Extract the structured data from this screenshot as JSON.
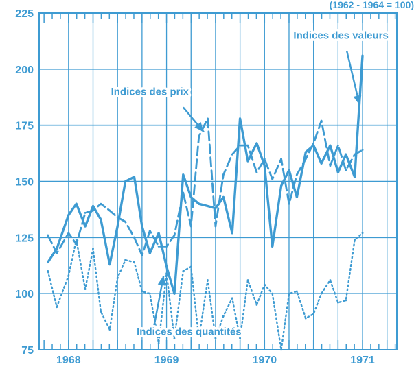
{
  "chart_data": {
    "type": "line",
    "title": "",
    "base_note": "(1962 - 1964 = 100)",
    "xlabel": "",
    "ylabel": "",
    "ylim": [
      75,
      225
    ],
    "yticks": [
      75,
      100,
      125,
      150,
      175,
      200,
      225
    ],
    "xlim": [
      1967.7,
      1971.35
    ],
    "year_labels": [
      {
        "label": "1968",
        "x": 1968.0
      },
      {
        "label": "1969",
        "x": 1969.0
      },
      {
        "label": "1970",
        "x": 1970.0
      },
      {
        "label": "1971",
        "x": 1971.0
      }
    ],
    "grid": true,
    "accent_color": "#3e9bd2",
    "series": [
      {
        "key": "valeurs",
        "label": "Indices des valeurs",
        "style": "solid",
        "x": [
          1967.79,
          1967.88,
          1968.0,
          1968.08,
          1968.17,
          1968.25,
          1968.33,
          1968.42,
          1968.5,
          1968.58,
          1968.67,
          1968.75,
          1968.83,
          1968.92,
          1969.0,
          1969.08,
          1969.17,
          1969.25,
          1969.33,
          1969.42,
          1969.5,
          1969.58,
          1969.67,
          1969.75,
          1969.83,
          1969.92,
          1970.0,
          1970.08,
          1970.17,
          1970.25,
          1970.33,
          1970.42,
          1970.5,
          1970.58,
          1970.67,
          1970.75,
          1970.83,
          1970.92,
          1971.0
        ],
        "y": [
          114,
          120,
          135,
          140,
          130,
          139,
          133,
          113,
          130,
          150,
          152,
          130,
          118,
          127,
          112,
          100,
          153,
          143,
          140,
          139,
          138,
          143,
          127,
          178,
          159,
          167,
          157,
          121,
          148,
          155,
          143,
          163,
          166,
          158,
          166,
          154,
          162,
          152,
          206
        ]
      },
      {
        "key": "prix",
        "label": "Indices des prix",
        "style": "dashed",
        "x": [
          1967.79,
          1967.88,
          1968.0,
          1968.08,
          1968.17,
          1968.25,
          1968.33,
          1968.42,
          1968.5,
          1968.58,
          1968.67,
          1968.75,
          1968.83,
          1968.92,
          1969.0,
          1969.08,
          1969.17,
          1969.25,
          1969.33,
          1969.42,
          1969.5,
          1969.58,
          1969.67,
          1969.75,
          1969.83,
          1969.92,
          1970.0,
          1970.08,
          1970.17,
          1970.25,
          1970.33,
          1970.42,
          1970.5,
          1970.58,
          1970.67,
          1970.75,
          1970.83,
          1970.92,
          1971.0
        ],
        "y": [
          126,
          118,
          127,
          122,
          136,
          137,
          140,
          137,
          134,
          132,
          125,
          117,
          128,
          121,
          121,
          126,
          145,
          130,
          170,
          178,
          130,
          153,
          162,
          166,
          166,
          154,
          160,
          151,
          160,
          140,
          153,
          160,
          167,
          177,
          157,
          166,
          155,
          162,
          164
        ]
      },
      {
        "key": "quantites",
        "label": "Indices des quantités",
        "style": "dotted",
        "x": [
          1967.79,
          1967.88,
          1968.0,
          1968.08,
          1968.17,
          1968.25,
          1968.33,
          1968.42,
          1968.5,
          1968.58,
          1968.67,
          1968.75,
          1968.83,
          1968.92,
          1969.0,
          1969.08,
          1969.17,
          1969.25,
          1969.33,
          1969.42,
          1969.5,
          1969.58,
          1969.67,
          1969.75,
          1969.83,
          1969.92,
          1970.0,
          1970.08,
          1970.17,
          1970.25,
          1970.33,
          1970.42,
          1970.5,
          1970.58,
          1970.67,
          1970.75,
          1970.83,
          1970.92,
          1971.0
        ],
        "y": [
          110,
          94,
          108,
          124,
          102,
          120,
          92,
          84,
          107,
          115,
          114,
          101,
          100,
          78,
          109,
          80,
          110,
          112,
          80,
          106,
          80,
          90,
          98,
          80,
          106,
          95,
          104,
          100,
          75,
          100,
          101,
          89,
          91,
          100,
          106,
          96,
          97,
          124,
          127
        ]
      }
    ],
    "annotations": [
      {
        "text": "Indices des valeurs",
        "series": "valeurs",
        "label_at": [
          1970.78,
          213.5
        ],
        "arrow_from": [
          1970.84,
          208
        ],
        "arrow_to": [
          1970.97,
          184
        ]
      },
      {
        "text": "Indices des prix",
        "series": "prix",
        "label_at": [
          1968.83,
          188.5
        ],
        "arrow_from": [
          1969.17,
          183
        ],
        "arrow_to": [
          1969.38,
          172
        ]
      },
      {
        "text": "Indices des quantités",
        "series": "quantites",
        "label_at": [
          1969.23,
          81.5
        ],
        "arrow_from": [
          1968.87,
          85
        ],
        "arrow_to": [
          1968.97,
          108
        ]
      }
    ]
  }
}
